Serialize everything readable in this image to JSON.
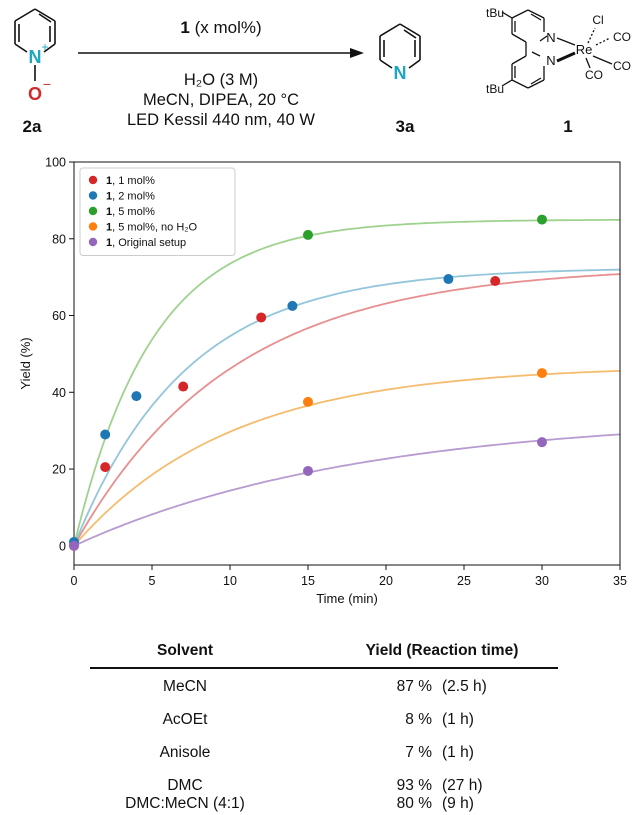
{
  "scheme": {
    "substrate": {
      "label": "2a",
      "atom_n": "N",
      "atom_o": "O",
      "plus": "+",
      "minus": "−"
    },
    "product": {
      "label": "3a",
      "atom_n": "N"
    },
    "catalyst": {
      "label": "1",
      "tbu_top": "tBu",
      "tbu_bottom": "tBu",
      "metal": "Re",
      "cl": "Cl",
      "co1": "CO",
      "co2": "CO",
      "co3": "CO",
      "n1": "N",
      "n2": "N"
    },
    "arrow_top_bold": "1",
    "arrow_top_rest": " (x mol%)",
    "conditions": [
      "H₂O (3 M)",
      "MeCN, DIPEA, 20 °C",
      "LED Kessil 440 nm, 40 W"
    ]
  },
  "chart_data": {
    "type": "scatter",
    "xlabel": "Time (min)",
    "ylabel": "Yield (%)",
    "xlim": [
      0,
      35
    ],
    "ylim": [
      -5,
      100
    ],
    "xticks": [
      0,
      5,
      10,
      15,
      20,
      25,
      30,
      35
    ],
    "yticks": [
      0,
      20,
      40,
      60,
      80,
      100
    ],
    "legend_position": "top-left",
    "series": [
      {
        "name_bold": "1",
        "name": ", 1 mol%",
        "color": "#d62728",
        "fit_color": "#e88f8f",
        "x": [
          0,
          2,
          7,
          12,
          27
        ],
        "y": [
          0,
          20.5,
          41.5,
          59.5,
          69
        ],
        "fit": {
          "ymax": 73,
          "k": 0.1
        }
      },
      {
        "name_bold": "1",
        "name": ", 2 mol%",
        "color": "#1f77b4",
        "fit_color": "#93c6da",
        "x": [
          0,
          2,
          4,
          14,
          24
        ],
        "y": [
          1,
          29,
          39,
          62.5,
          69.5
        ],
        "fit": {
          "ymax": 72.5,
          "k": 0.14
        }
      },
      {
        "name_bold": "1",
        "name": ", 5 mol%",
        "color": "#2ca02c",
        "fit_color": "#9fd28f",
        "x": [
          15,
          30
        ],
        "y": [
          81,
          85
        ],
        "fit": {
          "ymax": 85,
          "k": 0.2
        }
      },
      {
        "name_bold": "1",
        "name": ", 5 mol%, no H₂O",
        "color": "#ff7f0e",
        "fit_color": "#f5bc6e",
        "x": [
          15,
          30
        ],
        "y": [
          37.5,
          45
        ],
        "fit": {
          "ymax": 47,
          "k": 0.1
        }
      },
      {
        "name_bold": "1",
        "name": ", Original setup",
        "color": "#9467bd",
        "fit_color": "#b79bd1",
        "x": [
          0,
          15,
          30
        ],
        "y": [
          0,
          19.5,
          27
        ],
        "fit": {
          "ymax": 34,
          "k": 0.055
        }
      }
    ]
  },
  "table": {
    "headers": [
      "Solvent",
      "Yield (Reaction time)"
    ],
    "rows": [
      {
        "solvent": "MeCN",
        "yield": "87 %",
        "time": "(2.5 h)"
      },
      {
        "solvent": "AcOEt",
        "yield": "8 %",
        "time": "(1 h)"
      },
      {
        "solvent": "Anisole",
        "yield": "7 %",
        "time": "(1 h)"
      },
      {
        "solvent": "DMC",
        "yield": "93 %",
        "time": "(27 h)"
      },
      {
        "solvent": "DMC:MeCN (4:1)",
        "yield": "80 %",
        "time": "(9 h)"
      }
    ]
  }
}
